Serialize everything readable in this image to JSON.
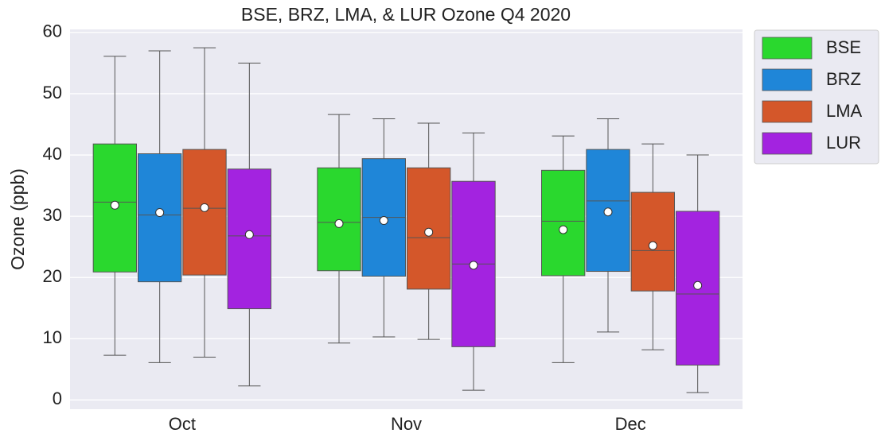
{
  "chart_data": {
    "type": "box",
    "title": "BSE, BRZ, LMA, & LUR Ozone Q4 2020",
    "y_label": "Ozone (ppb)",
    "categories": [
      "Oct",
      "Nov",
      "Dec"
    ],
    "ylim": [
      -1.5,
      60.5
    ],
    "yticks": [
      0,
      10,
      20,
      30,
      40,
      50,
      60
    ],
    "grid": true,
    "series": [
      {
        "name": "BSE",
        "color": "#2ad82e",
        "low": [
          7.3,
          9.3,
          6.1
        ],
        "q1": [
          20.9,
          21.1,
          20.3
        ],
        "median": [
          32.3,
          29.0,
          29.2
        ],
        "q3": [
          41.8,
          37.9,
          37.5
        ],
        "high": [
          56.1,
          46.6,
          43.1
        ],
        "mean": [
          31.8,
          28.8,
          27.8
        ]
      },
      {
        "name": "BRZ",
        "color": "#1f86d8",
        "low": [
          6.1,
          10.3,
          11.1
        ],
        "q1": [
          19.3,
          20.2,
          21.0
        ],
        "median": [
          30.2,
          29.8,
          32.5
        ],
        "q3": [
          40.2,
          39.4,
          40.9
        ],
        "high": [
          57.0,
          45.9,
          45.9
        ],
        "mean": [
          30.6,
          29.3,
          30.7
        ]
      },
      {
        "name": "LMA",
        "color": "#d4572a",
        "low": [
          7.0,
          9.9,
          8.2
        ],
        "q1": [
          20.4,
          18.1,
          17.8
        ],
        "median": [
          31.3,
          26.5,
          24.4
        ],
        "q3": [
          40.9,
          37.9,
          33.9
        ],
        "high": [
          57.5,
          45.2,
          41.8
        ],
        "mean": [
          31.4,
          27.4,
          25.2
        ]
      },
      {
        "name": "LUR",
        "color": "#a323e0",
        "low": [
          2.3,
          1.6,
          1.2
        ],
        "q1": [
          14.9,
          8.7,
          5.7
        ],
        "median": [
          26.8,
          22.2,
          17.3
        ],
        "q3": [
          37.7,
          35.7,
          30.8
        ],
        "high": [
          55.0,
          43.6,
          40.0
        ],
        "mean": [
          27.0,
          22.0,
          18.7
        ]
      }
    ]
  }
}
